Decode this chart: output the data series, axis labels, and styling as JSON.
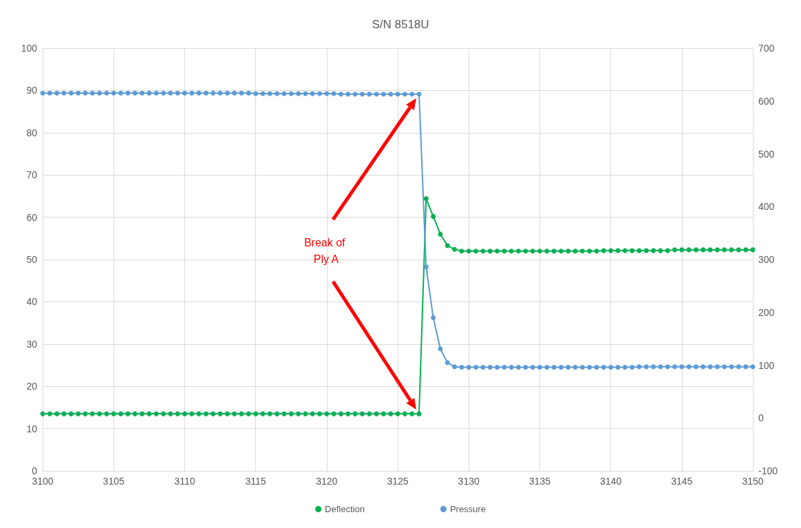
{
  "chart_data": {
    "type": "line",
    "title": "S/N 8518U",
    "x": [
      3100,
      3100.5,
      3101,
      3101.5,
      3102,
      3102.5,
      3103,
      3103.5,
      3104,
      3104.5,
      3105,
      3105.5,
      3106,
      3106.5,
      3107,
      3107.5,
      3108,
      3108.5,
      3109,
      3109.5,
      3110,
      3110.5,
      3111,
      3111.5,
      3112,
      3112.5,
      3113,
      3113.5,
      3114,
      3114.5,
      3115,
      3115.5,
      3116,
      3116.5,
      3117,
      3117.5,
      3118,
      3118.5,
      3119,
      3119.5,
      3120,
      3120.5,
      3121,
      3121.5,
      3122,
      3122.5,
      3123,
      3123.5,
      3124,
      3124.5,
      3125,
      3125.5,
      3126,
      3126.5,
      3127,
      3127.5,
      3128,
      3128.5,
      3129,
      3129.5,
      3130,
      3130.5,
      3131,
      3131.5,
      3132,
      3132.5,
      3133,
      3133.5,
      3134,
      3134.5,
      3135,
      3135.5,
      3136,
      3136.5,
      3137,
      3137.5,
      3138,
      3138.5,
      3139,
      3139.5,
      3140,
      3140.5,
      3141,
      3141.5,
      3142,
      3142.5,
      3143,
      3143.5,
      3144,
      3144.5,
      3145,
      3145.5,
      3146,
      3146.5,
      3147,
      3147.5,
      3148,
      3148.5,
      3149,
      3149.5,
      3150
    ],
    "series": [
      {
        "name": "Deflection",
        "color": "#00b050",
        "values": [
          13.5,
          13.5,
          13.5,
          13.5,
          13.5,
          13.5,
          13.5,
          13.5,
          13.5,
          13.5,
          13.5,
          13.5,
          13.5,
          13.5,
          13.5,
          13.5,
          13.5,
          13.5,
          13.5,
          13.5,
          13.5,
          13.5,
          13.5,
          13.5,
          13.5,
          13.5,
          13.5,
          13.5,
          13.5,
          13.5,
          13.5,
          13.5,
          13.5,
          13.5,
          13.5,
          13.5,
          13.5,
          13.5,
          13.5,
          13.5,
          13.5,
          13.5,
          13.5,
          13.5,
          13.5,
          13.5,
          13.5,
          13.5,
          13.5,
          13.5,
          13.5,
          13.5,
          13.5,
          13.5,
          64.4,
          60.2,
          56.0,
          53.3,
          52.4,
          52.0,
          52.0,
          52.0,
          52.0,
          52.0,
          52.0,
          52.0,
          52.0,
          52.0,
          52.0,
          52.0,
          52.0,
          52.0,
          52.0,
          52.0,
          52.0,
          52.0,
          52.0,
          52.0,
          52.0,
          52.1,
          52.1,
          52.1,
          52.1,
          52.1,
          52.1,
          52.1,
          52.1,
          52.1,
          52.1,
          52.3,
          52.3,
          52.3,
          52.3,
          52.3,
          52.3,
          52.3,
          52.3,
          52.3,
          52.3,
          52.3,
          52.3
        ]
      },
      {
        "name": "Pressure",
        "color": "#5b9bd5",
        "axis": "y2",
        "values": [
          615,
          615,
          615,
          615,
          615,
          615,
          615,
          615,
          615,
          615,
          615,
          615,
          615,
          615,
          615,
          615,
          615,
          615,
          615,
          615,
          615,
          615,
          615,
          615,
          615,
          615,
          615,
          615,
          615,
          615,
          614,
          614,
          614,
          614,
          614,
          614,
          614,
          614,
          614,
          614,
          614,
          614,
          613,
          613,
          613,
          613,
          613,
          613,
          613,
          613,
          613,
          613,
          613,
          613,
          286,
          190,
          131,
          105,
          97,
          96,
          96,
          96,
          96,
          96,
          96,
          96,
          96,
          96,
          96,
          96,
          96,
          96,
          96,
          96,
          96,
          96,
          96,
          96,
          96,
          96,
          96,
          96,
          96,
          96,
          97,
          97,
          97,
          97,
          97,
          97,
          97,
          97,
          97,
          97,
          97,
          97,
          97,
          97,
          97,
          97,
          97
        ]
      }
    ],
    "xlim": [
      3100,
      3150
    ],
    "xticks": [
      3100,
      3105,
      3110,
      3115,
      3120,
      3125,
      3130,
      3135,
      3140,
      3145,
      3150
    ],
    "ylim": [
      0,
      100
    ],
    "yticks": [
      0,
      10,
      20,
      30,
      40,
      50,
      60,
      70,
      80,
      90,
      100
    ],
    "y2lim": [
      -100,
      700
    ],
    "y2ticks": [
      -100,
      0,
      100,
      200,
      300,
      400,
      500,
      600,
      700
    ],
    "annotations": [
      "Break of Ply A"
    ],
    "grid": true,
    "legend": "bottom",
    "marker": "circle",
    "line_style": "solid"
  }
}
